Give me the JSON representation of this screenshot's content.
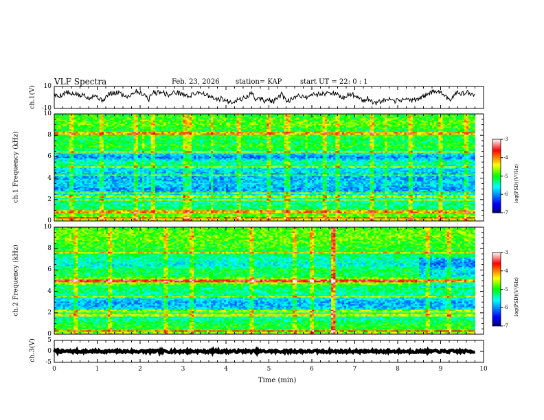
{
  "header": {
    "title": "VLF Spectra",
    "date": "Feb. 23, 2026",
    "station": "station= KAP",
    "start_ut": "start  UT =  22: 0  : 1"
  },
  "chart_data": [
    {
      "type": "line",
      "panel": "ch1-waveform",
      "ylabel": "ch.1(V)",
      "ylim": [
        -10,
        10
      ],
      "yticks": [
        "10",
        "-10"
      ],
      "xlim": [
        0,
        10
      ],
      "data_xmax": 9.8,
      "series": [
        {
          "name": "ch.1",
          "x": [
            0,
            0.1,
            0.2,
            0.3,
            0.4,
            0.5,
            0.6,
            0.7,
            0.8,
            0.9,
            1.0,
            1.1,
            1.2,
            1.3,
            1.4,
            1.5,
            1.6,
            1.7,
            1.8,
            1.9,
            2.0,
            2.1,
            2.2,
            2.3,
            2.4,
            2.5,
            2.6,
            2.7,
            2.8,
            2.9,
            3.0,
            3.1,
            3.2,
            3.3,
            3.4,
            3.5,
            3.6,
            3.7,
            3.8,
            3.9,
            4.0,
            4.1,
            4.2,
            4.3,
            4.4,
            4.5,
            4.6,
            4.7,
            4.8,
            4.9,
            5.0,
            5.1,
            5.2,
            5.3,
            5.4,
            5.5,
            5.6,
            5.7,
            5.8,
            5.9,
            6.0,
            6.1,
            6.2,
            6.3,
            6.4,
            6.5,
            6.6,
            6.7,
            6.8,
            6.9,
            7.0,
            7.1,
            7.2,
            7.3,
            7.4,
            7.5,
            7.6,
            7.7,
            7.8,
            7.9,
            8.0,
            8.1,
            8.2,
            8.3,
            8.4,
            8.5,
            8.6,
            8.7,
            8.8,
            8.9,
            9.0,
            9.1,
            9.2,
            9.3,
            9.4,
            9.5,
            9.6,
            9.7,
            9.8
          ],
          "values": [
            2,
            1,
            3,
            5,
            2,
            4,
            1,
            3,
            -1,
            2,
            1,
            -3,
            0,
            4,
            3,
            5,
            2,
            1,
            3,
            6,
            4,
            3,
            -2,
            5,
            4,
            6,
            3,
            2,
            5,
            4,
            3,
            1,
            2,
            4,
            5,
            3,
            1,
            -1,
            -2,
            -1,
            -3,
            -4,
            -3,
            -2,
            -1,
            1,
            4,
            -2,
            -1,
            -3,
            -2,
            -4,
            -1,
            3,
            -4,
            -2,
            -1,
            2,
            1,
            0,
            3,
            2,
            4,
            3,
            5,
            4,
            2,
            -1,
            1,
            3,
            2,
            0,
            -3,
            -1,
            -4,
            -5,
            -4,
            -3,
            -2,
            -4,
            -3,
            -2,
            -1,
            -3,
            -2,
            -1,
            1,
            3,
            5,
            4,
            6,
            2,
            -3,
            2,
            6,
            3,
            5,
            2,
            3
          ]
        }
      ]
    },
    {
      "type": "heatmap",
      "panel": "ch1-spectrogram",
      "ylabel": "ch.1 Frequency (kHz)",
      "ylim": [
        0,
        10
      ],
      "yticks": [
        "0",
        "2",
        "4",
        "6",
        "8",
        "10"
      ],
      "xlim": [
        0,
        10
      ],
      "data_xmax": 9.8,
      "colorbar": {
        "label": "log(PSD)(V²/Hz)",
        "range": [
          -7,
          -3
        ],
        "ticks": [
          "-3",
          "-4",
          "-5",
          "-6",
          "-7"
        ]
      },
      "profile": {
        "freq_khz": [
          0,
          0.5,
          1,
          1.5,
          2,
          2.5,
          3,
          3.5,
          4,
          4.5,
          5,
          5.5,
          6,
          6.5,
          7,
          7.5,
          8,
          8.5,
          9,
          9.5,
          10
        ],
        "log_psd": [
          -4.4,
          -4.8,
          -5.1,
          -5.3,
          -5.4,
          -5.6,
          -6.0,
          -5.7,
          -5.9,
          -5.8,
          -5.6,
          -5.3,
          -6.1,
          -5.3,
          -5.0,
          -5.2,
          -5.0,
          -5.1,
          -4.8,
          -4.9,
          -5.0
        ]
      },
      "narrowband_lines_khz": [
        0.3,
        0.9,
        2.0,
        2.3,
        2.6,
        4.3,
        5.1,
        6.5,
        8.2
      ],
      "bursts_min": [
        0.4,
        1.1,
        1.9,
        2.3,
        3.05,
        3.15,
        4.3,
        5.0,
        5.4,
        5.45,
        6.3,
        6.6,
        7.4,
        8.3,
        9.0,
        9.6
      ]
    },
    {
      "type": "heatmap",
      "panel": "ch2-spectrogram",
      "ylabel": "ch.2 Frequency (kHz)",
      "ylim": [
        0,
        10
      ],
      "yticks": [
        "0",
        "2",
        "4",
        "6",
        "8",
        "10"
      ],
      "xlim": [
        0,
        10
      ],
      "data_xmax": 9.8,
      "colorbar": {
        "label": "log(PSD)(V²/Hz)",
        "range": [
          -7,
          -3
        ],
        "ticks": [
          "-3",
          "-4",
          "-5",
          "-6",
          "-7"
        ]
      },
      "profile": {
        "freq_khz": [
          0,
          0.5,
          1,
          1.5,
          2,
          2.5,
          3,
          3.5,
          4,
          4.5,
          5,
          5.5,
          6,
          6.5,
          7,
          7.5,
          8,
          8.5,
          9,
          9.5,
          10
        ],
        "log_psd": [
          -4.5,
          -5.0,
          -5.1,
          -5.4,
          -5.4,
          -5.8,
          -5.9,
          -5.5,
          -5.3,
          -5.2,
          -4.3,
          -5.2,
          -5.1,
          -5.6,
          -5.4,
          -5.2,
          -5.0,
          -4.9,
          -4.8,
          -4.8,
          -4.9
        ]
      },
      "narrowband_lines_khz": [
        0.3,
        1.8,
        2.2,
        3.5,
        4.9,
        5.1,
        7.6
      ],
      "bursts_min": [
        0.5,
        1.3,
        2.6,
        3.2,
        4.6,
        5.6,
        6.0,
        6.5,
        8.7,
        9.2
      ]
    },
    {
      "type": "line",
      "panel": "ch3-waveform",
      "ylabel": "ch.3(V)",
      "ylim": [
        -5,
        5
      ],
      "yticks": [
        "5",
        "0",
        "-5"
      ],
      "xlim": [
        0,
        10
      ],
      "data_xmax": 9.8,
      "series": [
        {
          "name": "ch.3",
          "x": [
            0,
            9.8
          ],
          "values": [
            0,
            0
          ]
        }
      ]
    }
  ],
  "xaxis": {
    "label": "Time  (min)",
    "ticks": [
      "0",
      "1",
      "2",
      "3",
      "4",
      "5",
      "6",
      "7",
      "8",
      "9",
      "10"
    ]
  }
}
